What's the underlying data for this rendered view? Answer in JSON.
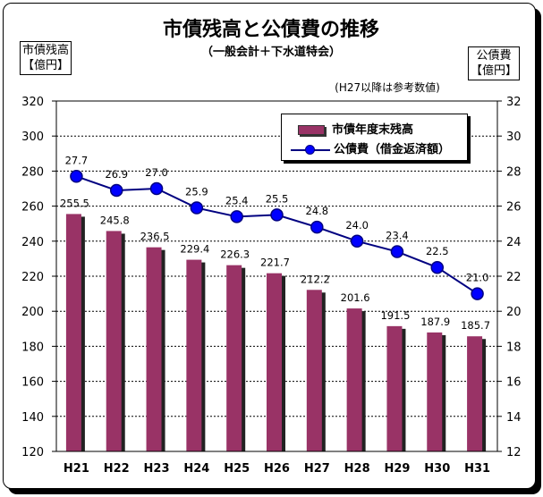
{
  "chart_data": {
    "type": "bar+line",
    "title": "市債残高と公債費の推移",
    "subtitle": "（一般会計＋下水道特会）",
    "note": "(H27以降は参考数値)",
    "categories": [
      "H21",
      "H22",
      "H23",
      "H24",
      "H25",
      "H26",
      "H27",
      "H28",
      "H29",
      "H30",
      "H31"
    ],
    "left_axis": {
      "label_lines": [
        "市債残高",
        "【億円】"
      ],
      "ylim": [
        120,
        320
      ],
      "ticks": [
        120,
        140,
        160,
        180,
        200,
        220,
        240,
        260,
        280,
        300,
        320
      ]
    },
    "right_axis": {
      "label_lines": [
        "公債費",
        "【億円】"
      ],
      "ylim": [
        12,
        32
      ],
      "ticks": [
        12,
        14,
        16,
        18,
        20,
        22,
        24,
        26,
        28,
        30,
        32
      ]
    },
    "series": [
      {
        "name": "市債年度末残高",
        "type": "bar",
        "axis": "left",
        "color": "#993366",
        "values": [
          255.5,
          245.8,
          236.5,
          229.4,
          226.3,
          221.7,
          212.2,
          201.6,
          191.5,
          187.9,
          185.7
        ],
        "labels": [
          "255.5",
          "245.8",
          "236.5",
          "229.4",
          "226.3",
          "221.7",
          "212.2",
          "201.6",
          "191.5",
          "187.9",
          "185.7"
        ]
      },
      {
        "name": "公債費（借金返済額）",
        "type": "line",
        "axis": "right",
        "color": "#000080",
        "values": [
          27.7,
          26.9,
          27.0,
          25.9,
          25.4,
          25.5,
          24.8,
          24.0,
          23.4,
          22.5,
          21.0
        ],
        "labels": [
          "27.7",
          "26.9",
          "27.0",
          "25.9",
          "25.4",
          "25.5",
          "24.8",
          "24.0",
          "23.4",
          "22.5",
          "21.0"
        ]
      }
    ],
    "grid": "horizontal dashed",
    "legend_position": "top-right"
  }
}
